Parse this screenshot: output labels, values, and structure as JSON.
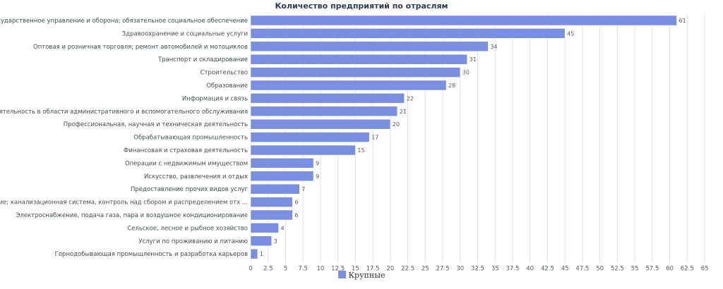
{
  "chart_data": {
    "type": "bar",
    "orientation": "horizontal",
    "title": "Количество предприятий по отраслям",
    "categories": [
      "Государственное управление и оборона; обязательное социальное обеспечение",
      "Здравоохранение и социальные услуги",
      "Оптовая и розничная торговля; ремонт автомобилей и мотоциклов",
      "Транспорт и складирование",
      "Строительство",
      "Образование",
      "Информация и связь",
      "Деятельность в области административного и вспомогательного обслуживания",
      "Профессиональная, научная и техническая деятельность",
      "Обрабатывающая промышленность",
      "Финансовая и страховая деятельность",
      "Операции с недвижимым имуществом",
      "Искусство, развлечения и отдых",
      "Предоставление прочих видов услуг",
      "Водоснабжение; канализационная система, контроль над сбором и распределением отх ...",
      "Электроснабжение, подача газа, пара и воздушное кондиционирование",
      "Сельское, лесное и рыбное хозяйство",
      "Услуги по проживанию и питанию",
      "Горнодобывающая промышленность и разработка карьеров"
    ],
    "series": [
      {
        "name": "Крупные",
        "color": "#7b8fe0",
        "values": [
          61,
          45,
          34,
          31,
          30,
          28,
          22,
          21,
          20,
          17,
          15,
          9,
          9,
          7,
          6,
          6,
          4,
          3,
          1
        ]
      }
    ],
    "xlim": [
      0,
      65
    ],
    "x_tick_step": 2.5,
    "x_tick_labels": [
      "0",
      "2.5",
      "5",
      "7.5",
      "10",
      "12.5",
      "15",
      "17.5",
      "20",
      "22.5",
      "25",
      "27.5",
      "30",
      "32.5",
      "35",
      "37.5",
      "40",
      "42.5",
      "45",
      "47.5",
      "50",
      "52.5",
      "55",
      "57.5",
      "60",
      "62.5",
      "65"
    ],
    "grid": "vertical",
    "legend": "bottom-center"
  }
}
